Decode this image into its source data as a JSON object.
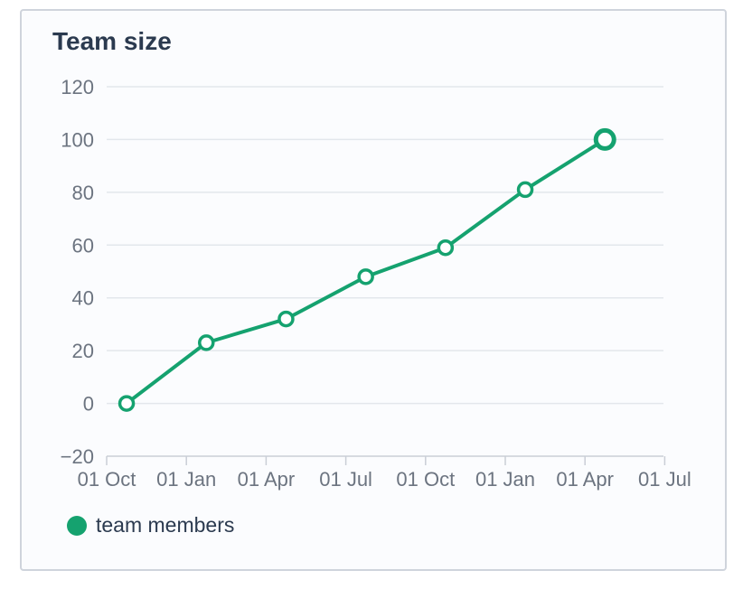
{
  "card": {
    "title": "Team size"
  },
  "chart_data": {
    "type": "line",
    "title": "Team size",
    "xlabel": "",
    "ylabel": "",
    "x_ticks": [
      "01 Oct",
      "01 Jan",
      "01 Apr",
      "01 Jul",
      "01 Oct",
      "01 Jan",
      "01 Apr",
      "01 Jul"
    ],
    "y_ticks": [
      "−20",
      "0",
      "20",
      "40",
      "60",
      "80",
      "100",
      "120"
    ],
    "ylim": [
      -20,
      120
    ],
    "grid": true,
    "legend_position": "bottom-left",
    "series": [
      {
        "name": "team members",
        "color": "#15a26f",
        "x_index": [
          0.25,
          1.25,
          2.25,
          3.25,
          4.25,
          5.25,
          6.25
        ],
        "values": [
          0,
          23,
          32,
          48,
          59,
          81,
          100
        ]
      }
    ]
  },
  "legend": {
    "items": [
      {
        "label": "team members",
        "color": "#15a26f"
      }
    ]
  }
}
